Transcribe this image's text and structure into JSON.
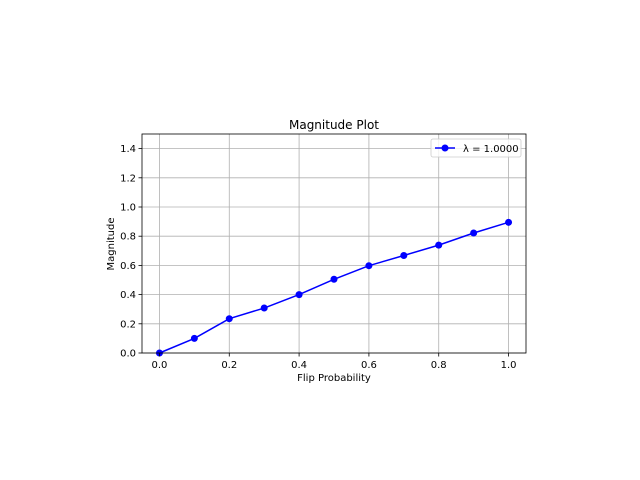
{
  "chart_data": {
    "type": "line",
    "title": "Magnitude Plot",
    "xlabel": "Flip Probability",
    "ylabel": "Magnitude",
    "xlim": [
      -0.05,
      1.05
    ],
    "ylim": [
      0.0,
      1.5
    ],
    "x_ticks": [
      0.0,
      0.2,
      0.4,
      0.6,
      0.8,
      1.0
    ],
    "x_tick_labels": [
      "0.0",
      "0.2",
      "0.4",
      "0.6",
      "0.8",
      "1.0"
    ],
    "y_ticks": [
      0.0,
      0.2,
      0.4,
      0.6,
      0.8,
      1.0,
      1.2,
      1.4
    ],
    "y_tick_labels": [
      "0.0",
      "0.2",
      "0.4",
      "0.6",
      "0.8",
      "1.0",
      "1.2",
      "1.4"
    ],
    "grid": true,
    "legend_position": "top-right",
    "series": [
      {
        "name": "λ = 1.0000",
        "color": "#0000ff",
        "marker": "circle",
        "x": [
          0.0,
          0.1,
          0.2,
          0.3,
          0.4,
          0.5,
          0.6,
          0.7,
          0.8,
          0.9,
          1.0
        ],
        "y": [
          0.0,
          0.1,
          0.235,
          0.308,
          0.4,
          0.505,
          0.598,
          0.668,
          0.739,
          0.822,
          0.895
        ]
      }
    ]
  }
}
